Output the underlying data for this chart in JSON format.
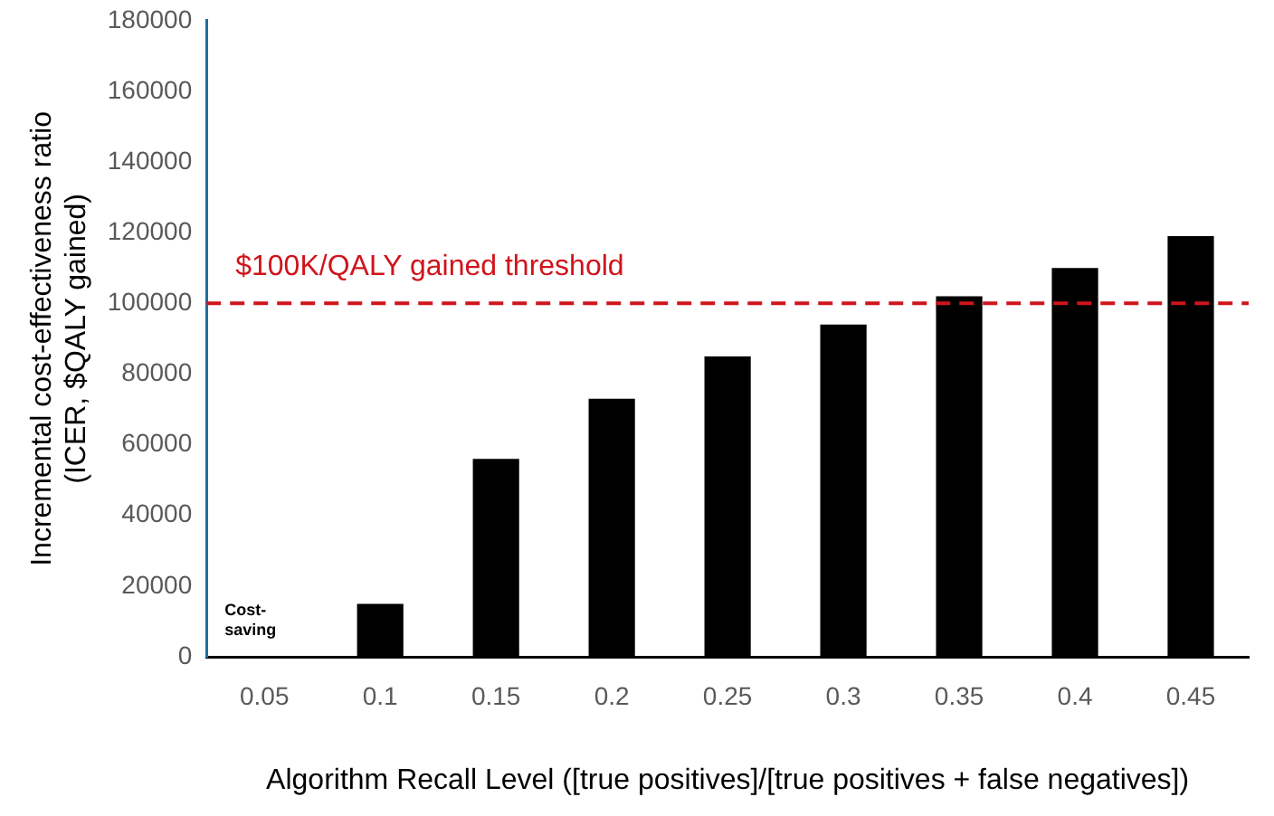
{
  "chart_data": {
    "type": "bar",
    "xlabel": "Algorithm Recall Level ([true positives]/[true positives + false negatives])",
    "ylabel": "Incremental cost-effectiveness ratio\n(ICER, $QALY gained)",
    "categories": [
      "0.05",
      "0.1",
      "0.15",
      "0.2",
      "0.25",
      "0.3",
      "0.35",
      "0.4",
      "0.45"
    ],
    "values": [
      null,
      15000,
      56000,
      73000,
      85000,
      94000,
      102000,
      110000,
      119000
    ],
    "color": "#000000",
    "ylim": [
      0,
      180000
    ],
    "yticks": [
      0,
      20000,
      40000,
      60000,
      80000,
      100000,
      120000,
      140000,
      160000,
      180000
    ],
    "grid": false,
    "legend": false,
    "ref_lines": [
      {
        "axis": "y",
        "value": 100000,
        "label": "$100K/QALY gained threshold",
        "color": "#d0141c",
        "line_style": "dashed"
      }
    ],
    "annotations": [
      "Cost-saving"
    ]
  }
}
